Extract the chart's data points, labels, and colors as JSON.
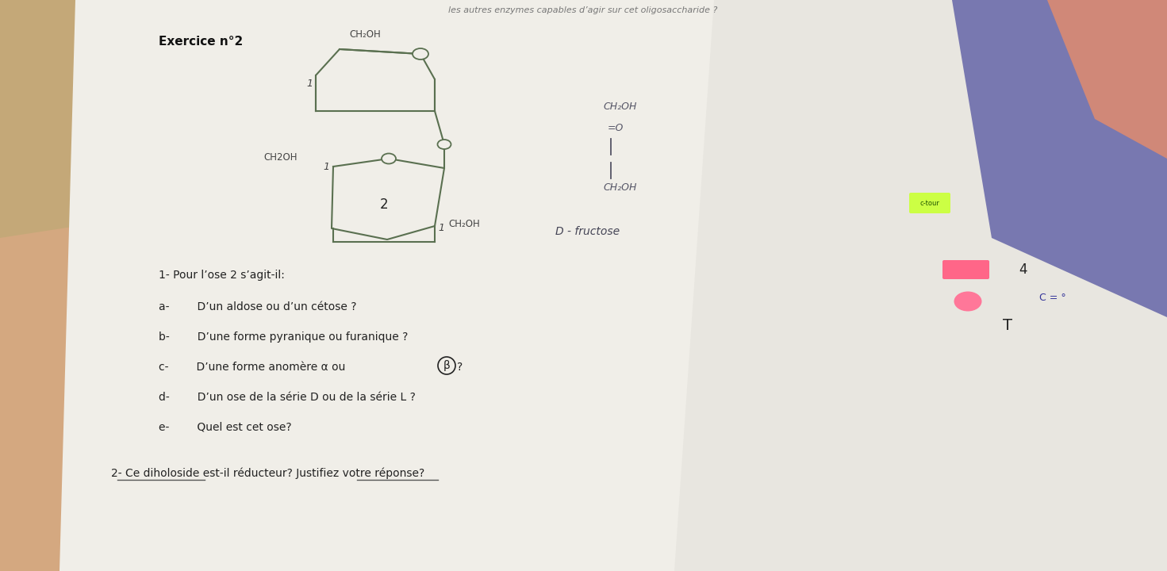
{
  "title_top": "les autres enzymes capables d’agir sur cet oligosaccharide ?",
  "exercise_title": "Exercice n°2",
  "q1_label": "1- Pour l’ose 2 s’agit-il:",
  "qa": "a-        D’un aldose ou d’un cétose ?",
  "qb": "b-        D’une forme pyranique ou furanique ?",
  "qd": "d-        D’un ose de la série D ou de la série L ?",
  "qe": "e-        Quel est cet ose?",
  "q2": "2- Ce diholoside est-il réducteur? Justifiez votre réponse?",
  "ch2oh_top": "CH₂OH",
  "ch2oh_left": "CH2OH",
  "ch2oh_right": "CH₂OH",
  "line_color": "#5a7050",
  "text_color": "#222222",
  "hw_color": "#555555",
  "bg_left_top": "#c8b090",
  "bg_floral": "#d4a878",
  "paper_color": "#f0eeea",
  "paper_right_color": "#ebebeb",
  "purple_bg": "#7070a8"
}
